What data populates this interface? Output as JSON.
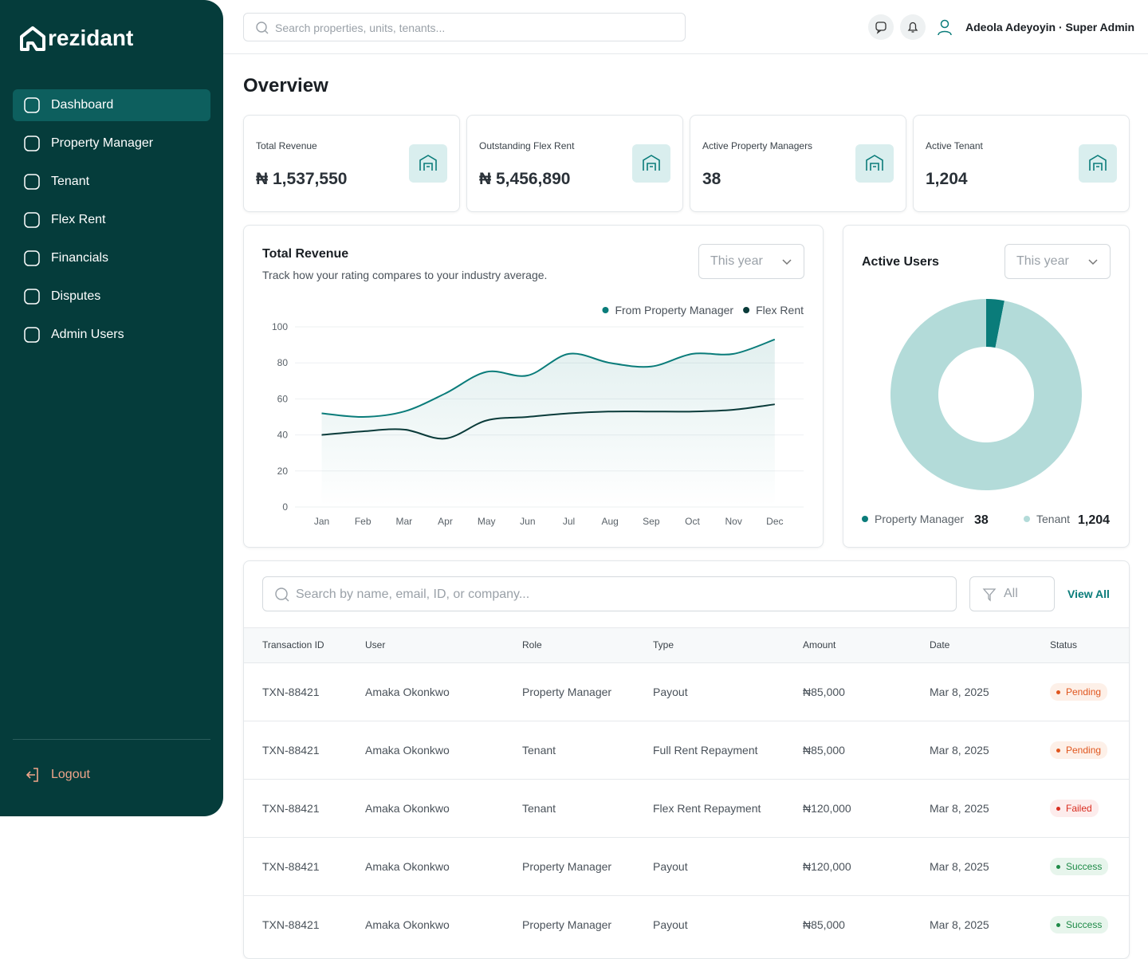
{
  "brand": "rezidant",
  "nav": {
    "items": [
      "Dashboard",
      "Property Manager",
      "Tenant",
      "Flex Rent",
      "Financials",
      "Disputes",
      "Admin Users"
    ],
    "logout": "Logout"
  },
  "topbar": {
    "search": "Search properties, units, tenants...",
    "user": "Adeola Adeyoyin · Super Admin"
  },
  "page_title": "Overview",
  "stats": [
    {
      "label": "Total Revenue",
      "value": "₦ 1,537,550"
    },
    {
      "label": "Outstanding Flex Rent",
      "value": "₦ 5,456,890"
    },
    {
      "label": "Active Property Managers",
      "value": "38"
    },
    {
      "label": "Active Tenant",
      "value": "1,204"
    }
  ],
  "chart_data": [
    {
      "type": "line",
      "title": "Total Revenue",
      "subtitle": "Track how your rating compares to your industry average.",
      "filter": "This year",
      "categories": [
        "Jan",
        "Feb",
        "Mar",
        "Apr",
        "May",
        "Jun",
        "Jul",
        "Aug",
        "Sep",
        "Oct",
        "Nov",
        "Dec"
      ],
      "series": [
        {
          "name": "From Property Manager",
          "color": "#0a7c7a",
          "values": [
            52,
            50,
            53,
            63,
            75,
            73,
            85,
            80,
            78,
            85,
            85,
            93
          ]
        },
        {
          "name": "Flex Rent",
          "color": "#0a3b3a",
          "values": [
            40,
            42,
            43,
            38,
            48,
            50,
            52,
            53,
            53,
            53,
            54,
            57
          ]
        }
      ],
      "ylim": [
        0,
        100
      ],
      "yticks": [
        0,
        20,
        40,
        60,
        80,
        100
      ],
      "grid": true
    },
    {
      "type": "pie",
      "title": "Active Users",
      "filter": "This year",
      "categories": [
        "Property Manager",
        "Tenant"
      ],
      "values": [
        38,
        1204
      ],
      "value_labels": [
        "38",
        "1,204"
      ],
      "colors": [
        "#0a7c7a",
        "#b3dbd9"
      ]
    }
  ],
  "table": {
    "search": "Search by name, email, ID, or company...",
    "filter": "All",
    "view_all": "View All",
    "headers": [
      "Transaction ID",
      "User",
      "Role",
      "Type",
      "Amount",
      "Date",
      "Status"
    ],
    "rows": [
      {
        "cells": [
          "TXN-88421",
          "Amaka Okonkwo",
          "Property Manager",
          "Payout",
          "₦85,000",
          "Mar 8, 2025",
          "Pending"
        ],
        "status_color": "#e0561e",
        "status_bg": "#fdf0e8"
      },
      {
        "cells": [
          "TXN-88421",
          "Amaka Okonkwo",
          "Tenant",
          "Full Rent Repayment",
          "₦85,000",
          "Mar 8, 2025",
          "Pending"
        ],
        "status_color": "#e0561e",
        "status_bg": "#fdf0e8"
      },
      {
        "cells": [
          "TXN-88421",
          "Amaka Okonkwo",
          "Tenant",
          "Flex Rent Repayment",
          "₦120,000",
          "Mar 8, 2025",
          "Failed"
        ],
        "status_color": "#d92d20",
        "status_bg": "#fdecec"
      },
      {
        "cells": [
          "TXN-88421",
          "Amaka Okonkwo",
          "Property Manager",
          "Payout",
          "₦120,000",
          "Mar 8, 2025",
          "Success"
        ],
        "status_color": "#1e8a47",
        "status_bg": "#e7f5ec"
      },
      {
        "cells": [
          "TXN-88421",
          "Amaka Okonkwo",
          "Property Manager",
          "Payout",
          "₦85,000",
          "Mar 8, 2025",
          "Success"
        ],
        "status_color": "#1e8a47",
        "status_bg": "#e7f5ec"
      }
    ]
  }
}
